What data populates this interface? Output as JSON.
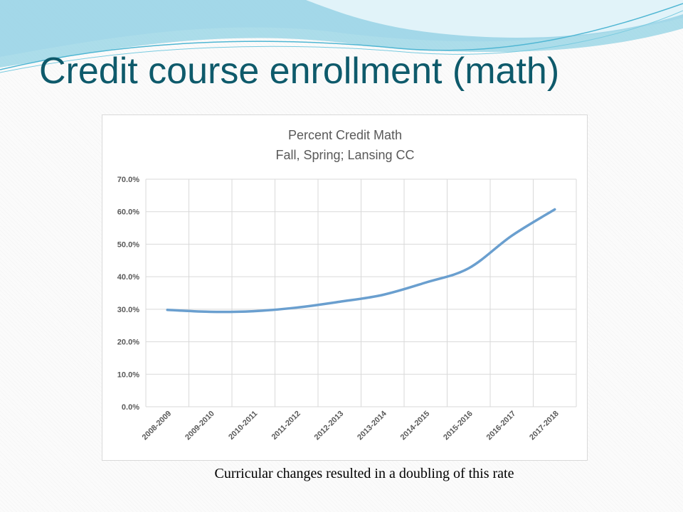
{
  "slide": {
    "title": "Credit course enrollment (math)",
    "caption": "Curricular changes resulted in a doubling of this rate"
  },
  "colors": {
    "title": "#0e5a6b",
    "series": "#6a9fcf",
    "grid": "#d9d9d9",
    "wave_light": "#bfe3ef",
    "wave_dark": "#6cc4dc"
  },
  "chart_data": {
    "type": "line",
    "title": "Percent Credit Math",
    "subtitle": "Fall, Spring; Lansing CC",
    "xlabel": "",
    "ylabel": "",
    "categories": [
      "2008-2009",
      "2009-2010",
      "2010-2011",
      "2011-2012",
      "2012-2013",
      "2013-2014",
      "2014-2015",
      "2015-2016",
      "2016-2017",
      "2017-2018"
    ],
    "series": [
      {
        "values": [
          29.8,
          29.2,
          29.4,
          30.5,
          32.3,
          34.4,
          38.2,
          42.6,
          52.6,
          60.7
        ]
      }
    ],
    "ylim": [
      0,
      70
    ],
    "yticks": [
      "0.0%",
      "10.0%",
      "20.0%",
      "30.0%",
      "40.0%",
      "50.0%",
      "60.0%",
      "70.0%"
    ],
    "grid": true,
    "legend": "none"
  }
}
